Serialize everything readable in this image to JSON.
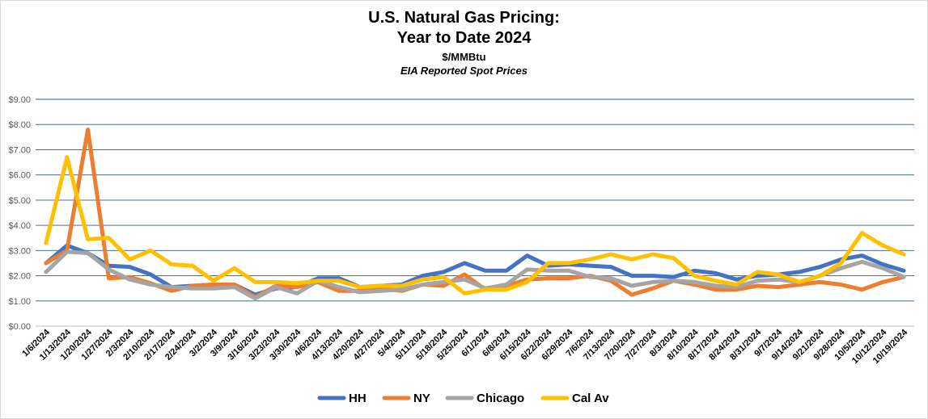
{
  "chart_data": {
    "type": "line",
    "title": "U.S. Natural Gas Pricing:",
    "title_line2": "Year to Date 2024",
    "subtitle": "$/MMBtu",
    "subtitle2": "EIA Reported Spot Prices",
    "xlabel": "",
    "ylabel": "",
    "ylim": [
      0,
      9
    ],
    "y_ticks": [
      "$0.00",
      "$1.00",
      "$2.00",
      "$3.00",
      "$4.00",
      "$5.00",
      "$6.00",
      "$7.00",
      "$8.00",
      "$9.00"
    ],
    "grid": true,
    "legend_position": "bottom",
    "x": [
      "1/6/2024",
      "1/13/2024",
      "1/20/2024",
      "1/27/2024",
      "2/3/2024",
      "2/10/2024",
      "2/17/2024",
      "2/24/2024",
      "3/2/2024",
      "3/9/2024",
      "3/16/2024",
      "3/23/2024",
      "3/30/2024",
      "4/6/2024",
      "4/13/2024",
      "4/20/2024",
      "4/27/2024",
      "5/4/2024",
      "5/11/2024",
      "5/18/2024",
      "5/25/2024",
      "6/1/2024",
      "6/8/2024",
      "6/15/2024",
      "6/22/2024",
      "6/29/2024",
      "7/6/2024",
      "7/13/2024",
      "7/20/2024",
      "7/27/2024",
      "8/3/2024",
      "8/10/2024",
      "8/17/2024",
      "8/24/2024",
      "8/31/2024",
      "9/7/2024",
      "9/14/2024",
      "9/21/2024",
      "9/28/2024",
      "10/5/2024",
      "10/12/2024",
      "10/19/2024"
    ],
    "series": [
      {
        "name": "HH",
        "color": "#4472C4",
        "values": [
          2.5,
          3.2,
          2.9,
          2.4,
          2.35,
          2.05,
          1.55,
          1.6,
          1.65,
          1.65,
          1.25,
          1.5,
          1.55,
          1.9,
          1.9,
          1.55,
          1.6,
          1.65,
          2.0,
          2.15,
          2.5,
          2.2,
          2.2,
          2.8,
          2.4,
          2.45,
          2.4,
          2.35,
          2.0,
          2.0,
          1.95,
          2.2,
          2.1,
          1.85,
          2.0,
          2.05,
          2.15,
          2.35,
          2.65,
          2.8,
          2.45,
          2.2
        ]
      },
      {
        "name": "NY",
        "color": "#ED7D31",
        "values": [
          2.5,
          3.0,
          7.8,
          1.9,
          1.95,
          1.7,
          1.4,
          1.6,
          1.65,
          1.65,
          1.15,
          1.6,
          1.55,
          1.75,
          1.4,
          1.4,
          1.5,
          1.4,
          1.65,
          1.6,
          2.05,
          1.45,
          1.6,
          1.85,
          1.9,
          1.9,
          2.0,
          1.8,
          1.25,
          1.5,
          1.8,
          1.65,
          1.45,
          1.45,
          1.6,
          1.55,
          1.65,
          1.75,
          1.65,
          1.45,
          1.75,
          1.95
        ]
      },
      {
        "name": "Chicago",
        "color": "#A5A5A5",
        "values": [
          2.15,
          2.95,
          2.9,
          2.25,
          1.85,
          1.65,
          1.55,
          1.5,
          1.5,
          1.55,
          1.1,
          1.55,
          1.3,
          1.8,
          1.55,
          1.35,
          1.4,
          1.45,
          1.65,
          1.75,
          1.85,
          1.5,
          1.65,
          2.25,
          2.2,
          2.2,
          1.95,
          1.9,
          1.6,
          1.75,
          1.8,
          1.75,
          1.6,
          1.55,
          1.8,
          1.85,
          1.75,
          2.0,
          2.3,
          2.55,
          2.3,
          1.95
        ]
      },
      {
        "name": "Cal Av",
        "color": "#FFC000",
        "values": [
          3.3,
          6.7,
          3.45,
          3.5,
          2.65,
          3.0,
          2.45,
          2.4,
          1.8,
          2.3,
          1.75,
          1.75,
          1.7,
          1.8,
          1.8,
          1.55,
          1.6,
          1.6,
          1.85,
          1.95,
          1.3,
          1.45,
          1.45,
          1.75,
          2.5,
          2.5,
          2.65,
          2.85,
          2.65,
          2.85,
          2.7,
          2.0,
          1.8,
          1.65,
          2.15,
          2.05,
          1.75,
          2.0,
          2.5,
          3.7,
          3.2,
          2.85
        ]
      }
    ]
  }
}
